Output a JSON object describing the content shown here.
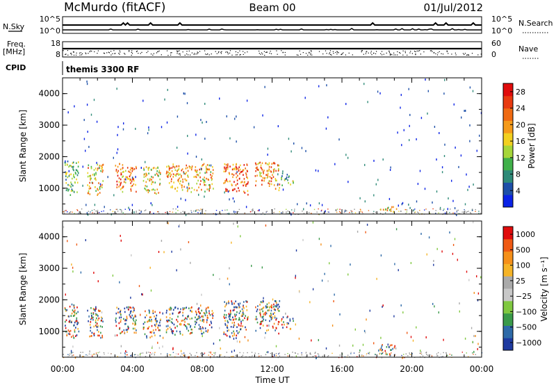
{
  "header": {
    "station": "McMurdo (fitACF)",
    "beam": "Beam 00",
    "date": "01/Jul/2012"
  },
  "summary_panels": {
    "nsky_label": "N.Sky",
    "nsky_ticks": [
      "10^5",
      "10^0"
    ],
    "nsearch_label": "N.Search",
    "nsearch_ticks": [
      "10^5",
      "10^0"
    ],
    "freq_label": "Freq.",
    "freq_unit": "[MHz]",
    "freq_ticks": [
      "18",
      "8"
    ],
    "nave_label": "Nave",
    "nave_ticks": [
      "60",
      "0"
    ],
    "cpid_label": "CPID",
    "cpid_value": "themis 3300 RF"
  },
  "colors": {
    "power": [
      "#0a22e6",
      "#1d4fa8",
      "#2e8a78",
      "#40b04a",
      "#a6d63a",
      "#f2d020",
      "#f59a1a",
      "#ef6a12",
      "#e83a10",
      "#e00c0c"
    ],
    "velocity": [
      "#e00c0c",
      "#ef5a14",
      "#f5901a",
      "#f5b428",
      "#aaaaaa",
      "#c8c8c8",
      "#80c840",
      "#3a9a4a",
      "#2e6aa8",
      "#1e3aa0"
    ],
    "ground_scatter": "#8a8a8a"
  },
  "chart_data": [
    {
      "type": "heatmap",
      "name": "power",
      "ylabel": "Slant Range [km]",
      "yticks": [
        1000,
        2000,
        3000,
        4000
      ],
      "ylim": [
        180,
        4500
      ],
      "xlim": [
        0,
        24
      ],
      "xticks": [
        "00:00",
        "04:00",
        "08:00",
        "12:00",
        "16:00",
        "20:00",
        "00:00"
      ],
      "colorbar": {
        "label": "Power [dB]",
        "tick_labels": [
          "4",
          "8",
          "12",
          "16",
          "20",
          "24",
          "28"
        ],
        "range": [
          0,
          30
        ]
      },
      "scatter_regions": [
        {
          "t": [
            0.1,
            0.9
          ],
          "r": [
            800,
            1900
          ],
          "level": 0.35
        },
        {
          "t": [
            1.4,
            2.3
          ],
          "r": [
            800,
            1800
          ],
          "level": 0.6
        },
        {
          "t": [
            3.0,
            4.2
          ],
          "r": [
            900,
            1800
          ],
          "level": 0.7
        },
        {
          "t": [
            4.6,
            5.6
          ],
          "r": [
            800,
            1700
          ],
          "level": 0.55
        },
        {
          "t": [
            5.9,
            7.4
          ],
          "r": [
            900,
            1800
          ],
          "level": 0.65
        },
        {
          "t": [
            7.5,
            8.6
          ],
          "r": [
            900,
            1800
          ],
          "level": 0.6
        },
        {
          "t": [
            9.2,
            10.6
          ],
          "r": [
            800,
            1800
          ],
          "level": 0.75
        },
        {
          "t": [
            11.0,
            12.4
          ],
          "r": [
            950,
            1850
          ],
          "level": 0.65
        },
        {
          "t": [
            12.5,
            13.2
          ],
          "r": [
            1100,
            1500
          ],
          "level": 0.4
        },
        {
          "t": [
            18.1,
            19.1
          ],
          "r": [
            250,
            450
          ],
          "level": 0.55
        }
      ]
    },
    {
      "type": "heatmap",
      "name": "velocity",
      "ylabel": "Slant Range [km]",
      "xlabel": "Time UT",
      "yticks": [
        1000,
        2000,
        3000,
        4000
      ],
      "ylim": [
        180,
        4500
      ],
      "xlim": [
        0,
        24
      ],
      "xticks": [
        "00:00",
        "04:00",
        "08:00",
        "12:00",
        "16:00",
        "20:00",
        "00:00"
      ],
      "colorbar": {
        "label": "Velocity [m s⁻¹]",
        "tick_labels": [
          "1000",
          "500",
          "100",
          "25",
          "−25",
          "−100",
          "−500",
          "−1000"
        ],
        "range": [
          -1000,
          1000
        ]
      },
      "scatter_regions": [
        {
          "t": [
            0.1,
            0.9
          ],
          "r": [
            800,
            1900
          ],
          "level": 0.3
        },
        {
          "t": [
            1.4,
            2.3
          ],
          "r": [
            800,
            1800
          ],
          "level": 0.55
        },
        {
          "t": [
            3.0,
            4.2
          ],
          "r": [
            900,
            1800
          ],
          "level": 0.5
        },
        {
          "t": [
            4.6,
            5.6
          ],
          "r": [
            800,
            1700
          ],
          "level": 0.6
        },
        {
          "t": [
            5.9,
            7.4
          ],
          "r": [
            900,
            1800
          ],
          "level": 0.65
        },
        {
          "t": [
            7.5,
            8.6
          ],
          "r": [
            900,
            1800
          ],
          "level": 0.55
        },
        {
          "t": [
            9.2,
            10.6
          ],
          "r": [
            800,
            2000
          ],
          "level": 0.8
        },
        {
          "t": [
            11.0,
            12.4
          ],
          "r": [
            950,
            2000
          ],
          "level": 0.75
        },
        {
          "t": [
            12.5,
            13.2
          ],
          "r": [
            1100,
            1500
          ],
          "level": 0.4
        },
        {
          "t": [
            18.1,
            19.1
          ],
          "r": [
            250,
            600
          ],
          "level": 0.8
        }
      ]
    }
  ]
}
